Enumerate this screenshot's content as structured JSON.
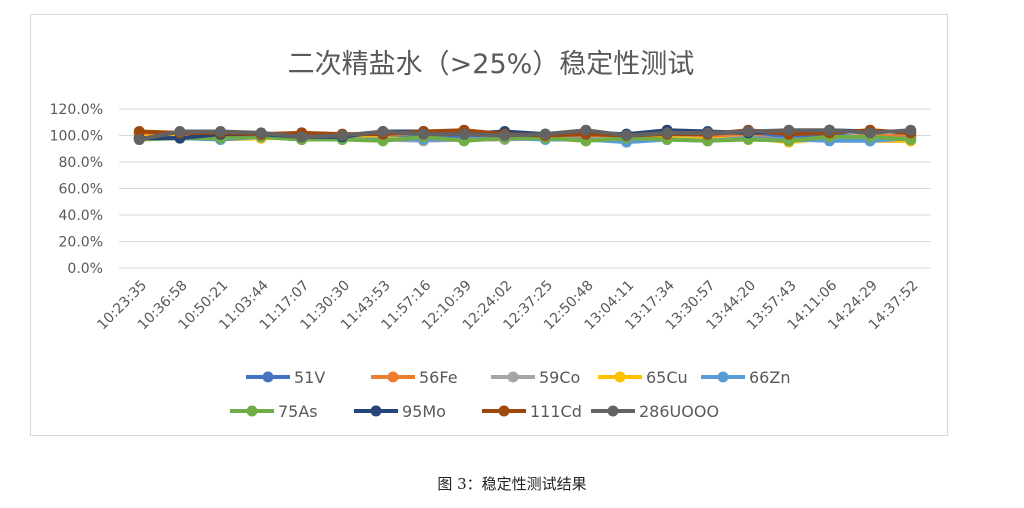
{
  "chart_data": {
    "type": "line",
    "title": "二次精盐水（>25%）稳定性测试",
    "xlabel": "",
    "ylabel": "",
    "ylim": [
      0,
      120
    ],
    "y_ticks": [
      "0.0%",
      "20.0%",
      "40.0%",
      "60.0%",
      "80.0%",
      "100.0%",
      "120.0%"
    ],
    "y_tick_values": [
      0,
      20,
      40,
      60,
      80,
      100,
      120
    ],
    "grid": true,
    "legend_position": "bottom",
    "categories": [
      "10:23:35",
      "10:36:58",
      "10:50:21",
      "11:03:44",
      "11:17:07",
      "11:30:30",
      "11:43:53",
      "11:57:16",
      "12:10:39",
      "12:24:02",
      "12:37:25",
      "12:50:48",
      "13:04:11",
      "13:17:34",
      "13:30:57",
      "13:44:20",
      "13:57:43",
      "14:11:06",
      "14:24:29",
      "14:37:52"
    ],
    "series": [
      {
        "name": "51V",
        "color": "#4472C4",
        "values": [
          101,
          100,
          100,
          99,
          100,
          99,
          98,
          99,
          100,
          101,
          100,
          98,
          99,
          101,
          100,
          102,
          98,
          100,
          99,
          100
        ]
      },
      {
        "name": "56Fe",
        "color": "#ED7D31",
        "values": [
          102,
          101,
          101,
          98,
          102,
          100,
          101,
          102,
          103,
          100,
          99,
          99,
          99,
          100,
          98,
          100,
          96,
          98,
          100,
          99
        ]
      },
      {
        "name": "59Co",
        "color": "#A5A5A5",
        "values": [
          98,
          100,
          98,
          99,
          97,
          98,
          97,
          96,
          97,
          97,
          98,
          97,
          98,
          99,
          97,
          98,
          97,
          97,
          96,
          96
        ]
      },
      {
        "name": "65Cu",
        "color": "#FFC000",
        "values": [
          99,
          99,
          97,
          98,
          98,
          98,
          98,
          97,
          97,
          98,
          98,
          96,
          98,
          98,
          97,
          98,
          95,
          98,
          96,
          96
        ]
      },
      {
        "name": "66Zn",
        "color": "#5B9BD5",
        "values": [
          98,
          98,
          97,
          99,
          97,
          97,
          97,
          97,
          97,
          98,
          97,
          97,
          95,
          97,
          96,
          98,
          97,
          96,
          96,
          98
        ]
      },
      {
        "name": "75As",
        "color": "#70AD47",
        "values": [
          97,
          98,
          98,
          99,
          97,
          97,
          96,
          99,
          96,
          98,
          98,
          96,
          98,
          97,
          96,
          97,
          96,
          99,
          99,
          97
        ]
      },
      {
        "name": "95Mo",
        "color": "#264478",
        "values": [
          98,
          98,
          101,
          101,
          99,
          99,
          103,
          103,
          101,
          103,
          101,
          102,
          101,
          104,
          103,
          102,
          103,
          104,
          103,
          103
        ]
      },
      {
        "name": "111Cd",
        "color": "#9E480E",
        "values": [
          103,
          102,
          102,
          101,
          102,
          101,
          101,
          103,
          104,
          101,
          100,
          101,
          100,
          101,
          101,
          104,
          101,
          102,
          104,
          102
        ]
      },
      {
        "name": "286UOOO",
        "color": "#636363",
        "values": [
          97,
          103,
          103,
          102,
          99,
          100,
          103,
          101,
          101,
          100,
          101,
          104,
          100,
          102,
          102,
          103,
          104,
          104,
          102,
          104
        ]
      }
    ]
  },
  "caption": "图 3：稳定性测试结果"
}
